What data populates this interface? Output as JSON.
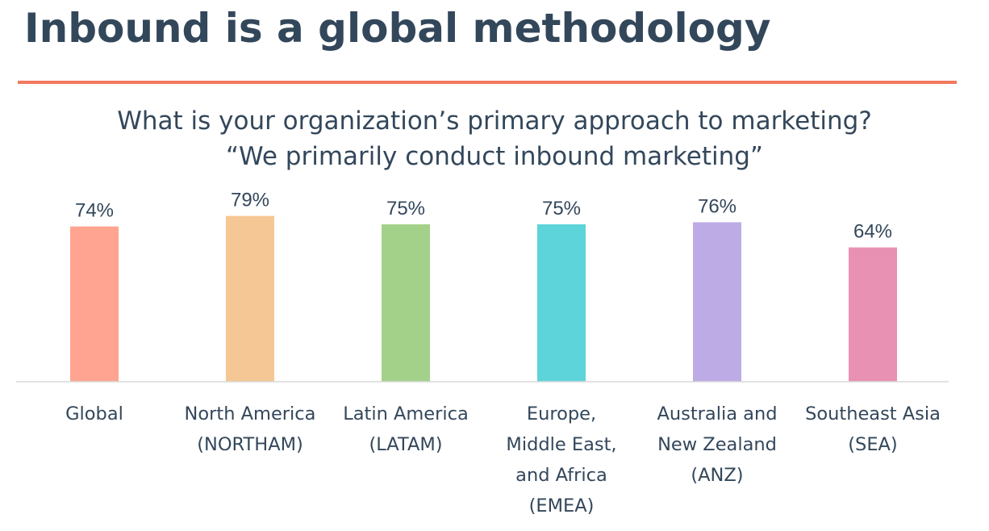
{
  "slide": {
    "title": "Inbound is a global methodology",
    "accent_color": "#f2795e"
  },
  "chart_data": {
    "type": "bar",
    "title": "What is your organization’s primary approach to marketing?",
    "subtitle": "“We primarily conduct inbound marketing”",
    "categories": [
      "Global",
      "North America\n(NORTHAM)",
      "Latin America\n(LATAM)",
      "Europe,\nMiddle East,\nand Africa\n(EMEA)",
      "Australia and\nNew Zealand\n(ANZ)",
      "Southeast Asia\n(SEA)"
    ],
    "values": [
      74,
      79,
      75,
      75,
      76,
      64
    ],
    "data_labels": [
      "74%",
      "79%",
      "75%",
      "75%",
      "76%",
      "64%"
    ],
    "colors": [
      "#fea491",
      "#f5c794",
      "#a3d18a",
      "#5cd4d9",
      "#bdabe6",
      "#e991b2"
    ],
    "ylim": [
      0,
      100
    ],
    "grid": false,
    "legend": "none",
    "xlabel": "",
    "ylabel": ""
  }
}
